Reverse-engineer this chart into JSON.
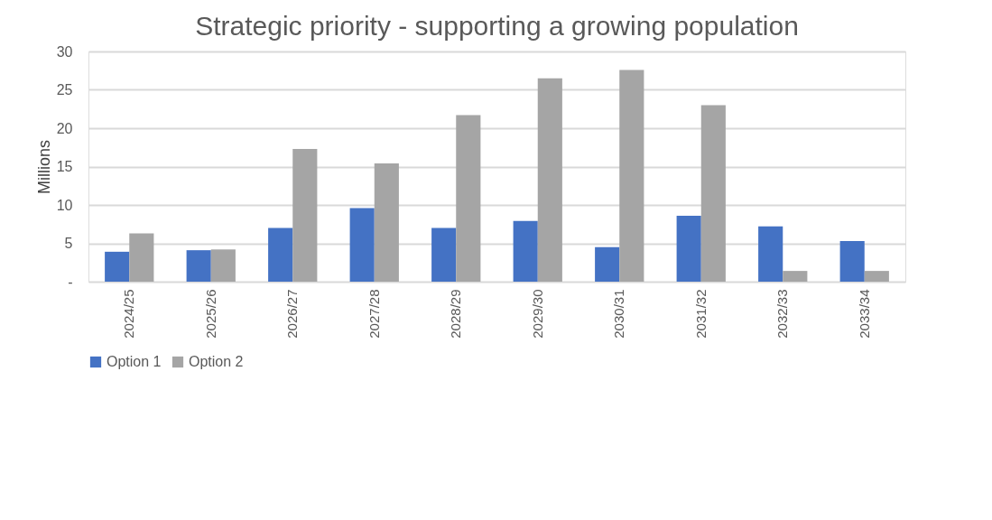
{
  "chart_data": {
    "type": "bar",
    "title": "Strategic priority - supporting a growing population",
    "ylabel": "Millions",
    "categories": [
      "2024/25",
      "2025/26",
      "2026/27",
      "2027/28",
      "2028/29",
      "2029/30",
      "2030/31",
      "2031/32",
      "2032/33",
      "2033/34"
    ],
    "series": [
      {
        "name": "Option 1",
        "color": "#4472c4",
        "values": [
          3.9,
          4.1,
          7.0,
          9.6,
          7.0,
          7.9,
          4.5,
          8.6,
          7.2,
          5.3
        ]
      },
      {
        "name": "Option 2",
        "color": "#a5a5a5",
        "values": [
          6.3,
          4.2,
          17.3,
          15.4,
          21.7,
          26.5,
          27.6,
          23.0,
          1.4,
          1.4
        ]
      }
    ],
    "ylim": [
      0,
      30
    ],
    "yticks": [
      {
        "value": 0,
        "label": "-"
      },
      5,
      10,
      15,
      20,
      25,
      30
    ],
    "grid": "y",
    "legend": "bottom"
  }
}
